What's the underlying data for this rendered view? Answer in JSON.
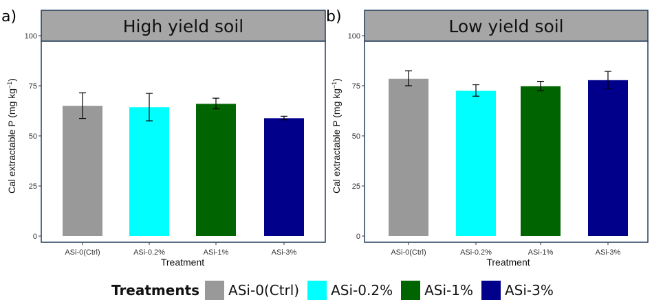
{
  "chart_data": [
    {
      "type": "bar",
      "panel_label": "a)",
      "title": "High yield soil",
      "xlabel": "Treatment",
      "ylabel": "Cal extractable P",
      "ylabel_unit": "(mg kg",
      "ylabel_exp": "−1",
      "ylabel_close": ")",
      "ylim": [
        0,
        100
      ],
      "yticks": [
        "0",
        "25",
        "50",
        "75",
        "100"
      ],
      "categories": [
        "ASi-0(Ctrl)",
        "ASi-0.2%",
        "ASi-1%",
        "ASi-3%"
      ],
      "values": [
        65,
        64.3,
        66,
        58.8
      ],
      "error_low": [
        58.7,
        57.5,
        63.5,
        58
      ],
      "error_high": [
        71.5,
        71.2,
        68.8,
        59.8
      ],
      "colors": [
        "#999999",
        "#00ffff",
        "#006400",
        "#00008b"
      ]
    },
    {
      "type": "bar",
      "panel_label": "b)",
      "title": "Low yield soil",
      "xlabel": "Treatment",
      "ylabel": "Cal extractable P",
      "ylabel_unit": "(mg kg",
      "ylabel_exp": "−1",
      "ylabel_close": ")",
      "ylim": [
        0,
        100
      ],
      "yticks": [
        "0",
        "25",
        "50",
        "75",
        "100"
      ],
      "categories": [
        "ASi-0(Ctrl)",
        "ASi-0.2%",
        "ASi-1%",
        "ASi-3%"
      ],
      "values": [
        78.5,
        72.5,
        74.8,
        77.8
      ],
      "error_low": [
        75,
        69.8,
        72.5,
        73.5
      ],
      "error_high": [
        82.5,
        75.5,
        77.2,
        82.2
      ],
      "colors": [
        "#999999",
        "#00ffff",
        "#006400",
        "#00008b"
      ]
    }
  ],
  "legend": {
    "title": "Treatments",
    "items": [
      {
        "label": "ASi-0(Ctrl)",
        "color": "#999999"
      },
      {
        "label": "ASi-0.2%",
        "color": "#00ffff"
      },
      {
        "label": "ASi-1%",
        "color": "#006400"
      },
      {
        "label": "ASi-3%",
        "color": "#00008b"
      }
    ]
  }
}
